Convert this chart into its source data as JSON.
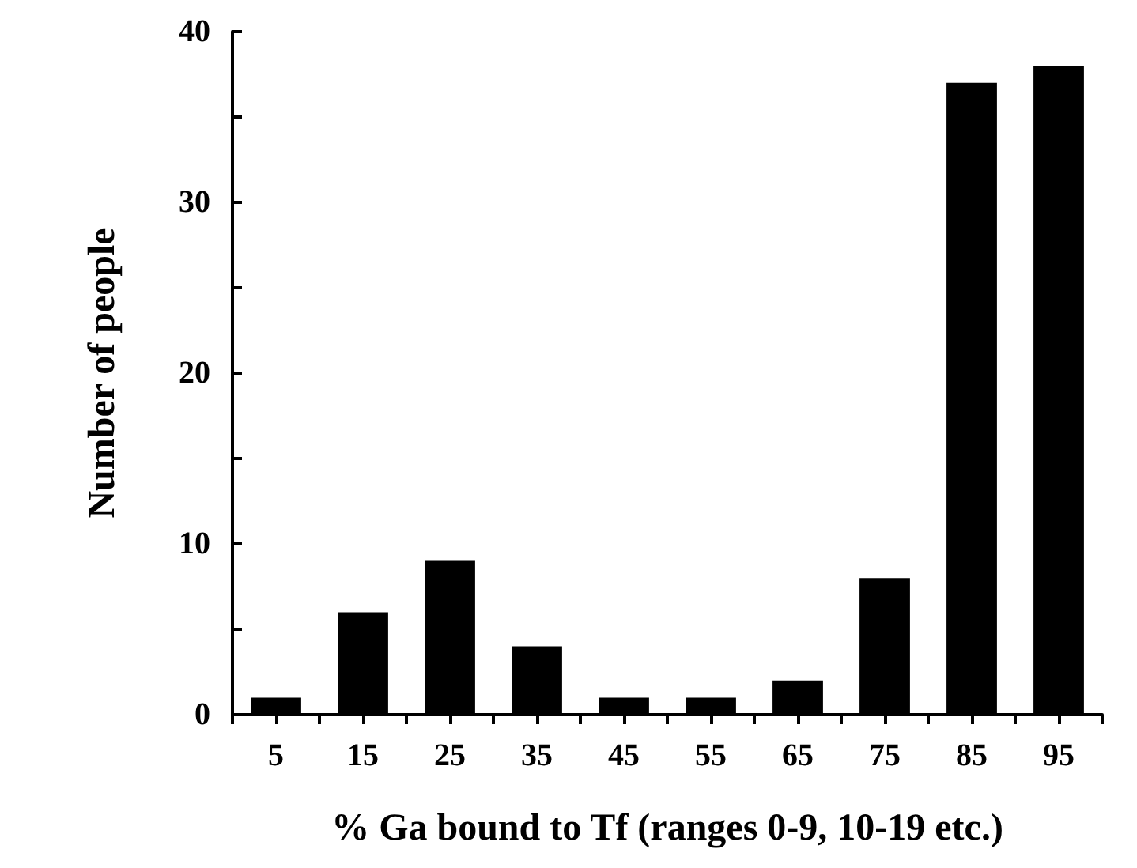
{
  "chart_data": {
    "type": "histogram",
    "xlabel": "% Ga bound to Tf (ranges 0-9, 10-19 etc.)",
    "ylabel": "Number of people",
    "bins": [
      0,
      10,
      20,
      30,
      40,
      50,
      60,
      70,
      80,
      90,
      100
    ],
    "values": [
      1,
      6,
      9,
      4,
      1,
      1,
      2,
      8,
      37,
      38
    ],
    "color": "#000000",
    "xlim": [
      0,
      100
    ],
    "xticks": [
      {
        "value": 0,
        "label": null
      },
      5,
      {
        "value": 10,
        "label": null
      },
      15,
      {
        "value": 20,
        "label": null
      },
      25,
      {
        "value": 30,
        "label": null
      },
      35,
      {
        "value": 40,
        "label": null
      },
      45,
      {
        "value": 50,
        "label": null
      },
      55,
      {
        "value": 60,
        "label": null
      },
      65,
      {
        "value": 70,
        "label": null
      },
      75,
      {
        "value": 80,
        "label": null
      },
      85,
      {
        "value": 90,
        "label": null
      },
      95,
      {
        "value": 100,
        "label": null
      }
    ],
    "ylim": [
      0,
      40
    ],
    "yticks": [
      0,
      {
        "value": 5,
        "label": null
      },
      10,
      {
        "value": 15,
        "label": null
      },
      20,
      {
        "value": 25,
        "label": null
      },
      30,
      {
        "value": 35,
        "label": null
      },
      40
    ],
    "grid": false
  }
}
